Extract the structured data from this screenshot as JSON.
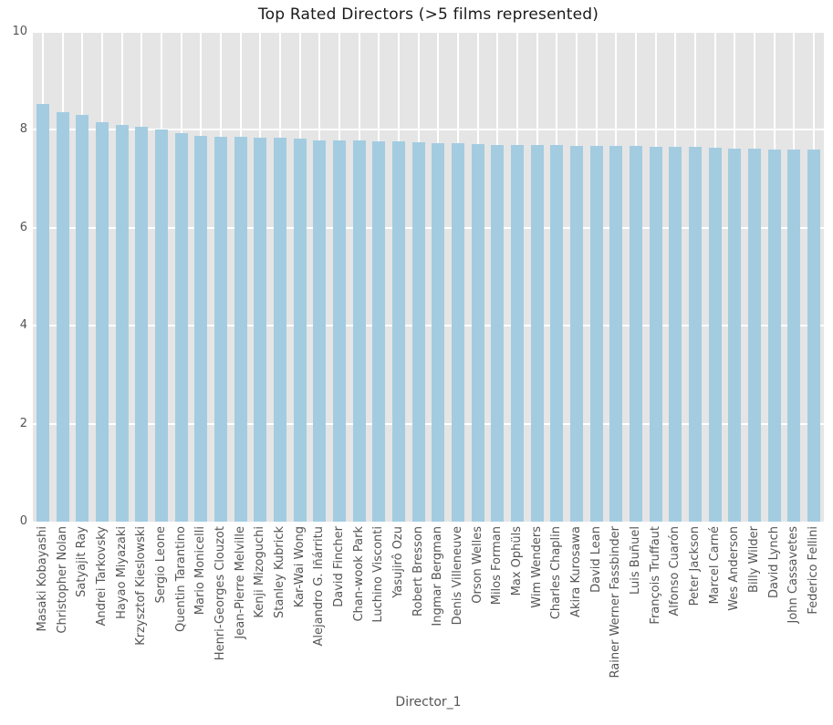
{
  "figure": {
    "title": "Top Rated Directors (>5 films represented)",
    "x_axis_title": "Director_1"
  },
  "chart_data": {
    "type": "bar",
    "title": "Top Rated Directors (>5 films represented)",
    "xlabel": "Director_1",
    "ylabel": "",
    "ylim": [
      0,
      10
    ],
    "yticks": [
      0,
      2,
      4,
      6,
      8,
      10
    ],
    "grid": true,
    "legend": false,
    "categories": [
      "Masaki Kobayashi",
      "Christopher Nolan",
      "Satyajit Ray",
      "Andrei Tarkovsky",
      "Hayao Miyazaki",
      "Krzysztof Kieslowski",
      "Sergio Leone",
      "Quentin Tarantino",
      "Mario Monicelli",
      "Henri-Georges Clouzot",
      "Jean-Pierre Melville",
      "Kenji Mizoguchi",
      "Stanley Kubrick",
      "Kar-Wai Wong",
      "Alejandro G. Iñárritu",
      "David Fincher",
      "Chan-wook Park",
      "Luchino Visconti",
      "Yasujirô Ozu",
      "Robert Bresson",
      "Ingmar Bergman",
      "Denis Villeneuve",
      "Orson Welles",
      "Milos Forman",
      "Max Ophüls",
      "Wim Wenders",
      "Charles Chaplin",
      "Akira Kurosawa",
      "David Lean",
      "Rainer Werner Fassbinder",
      "Luis Buñuel",
      "François Truffaut",
      "Alfonso Cuarón",
      "Peter Jackson",
      "Marcel Carné",
      "Wes Anderson",
      "Billy Wilder",
      "David Lynch",
      "John Cassavetes",
      "Federico Fellini"
    ],
    "values": [
      8.52,
      8.37,
      8.31,
      8.15,
      8.1,
      8.06,
      8.01,
      7.94,
      7.88,
      7.85,
      7.85,
      7.84,
      7.84,
      7.82,
      7.79,
      7.78,
      7.78,
      7.77,
      7.76,
      7.75,
      7.73,
      7.72,
      7.71,
      7.7,
      7.7,
      7.69,
      7.69,
      7.68,
      7.68,
      7.67,
      7.67,
      7.66,
      7.65,
      7.65,
      7.64,
      7.62,
      7.61,
      7.6,
      7.6,
      7.59
    ],
    "colors": {
      "bar": "#a3cce1",
      "plot_background": "#e5e5e5",
      "grid": "#ffffff",
      "tick_label": "#555555",
      "title": "#1a1a1a"
    }
  }
}
